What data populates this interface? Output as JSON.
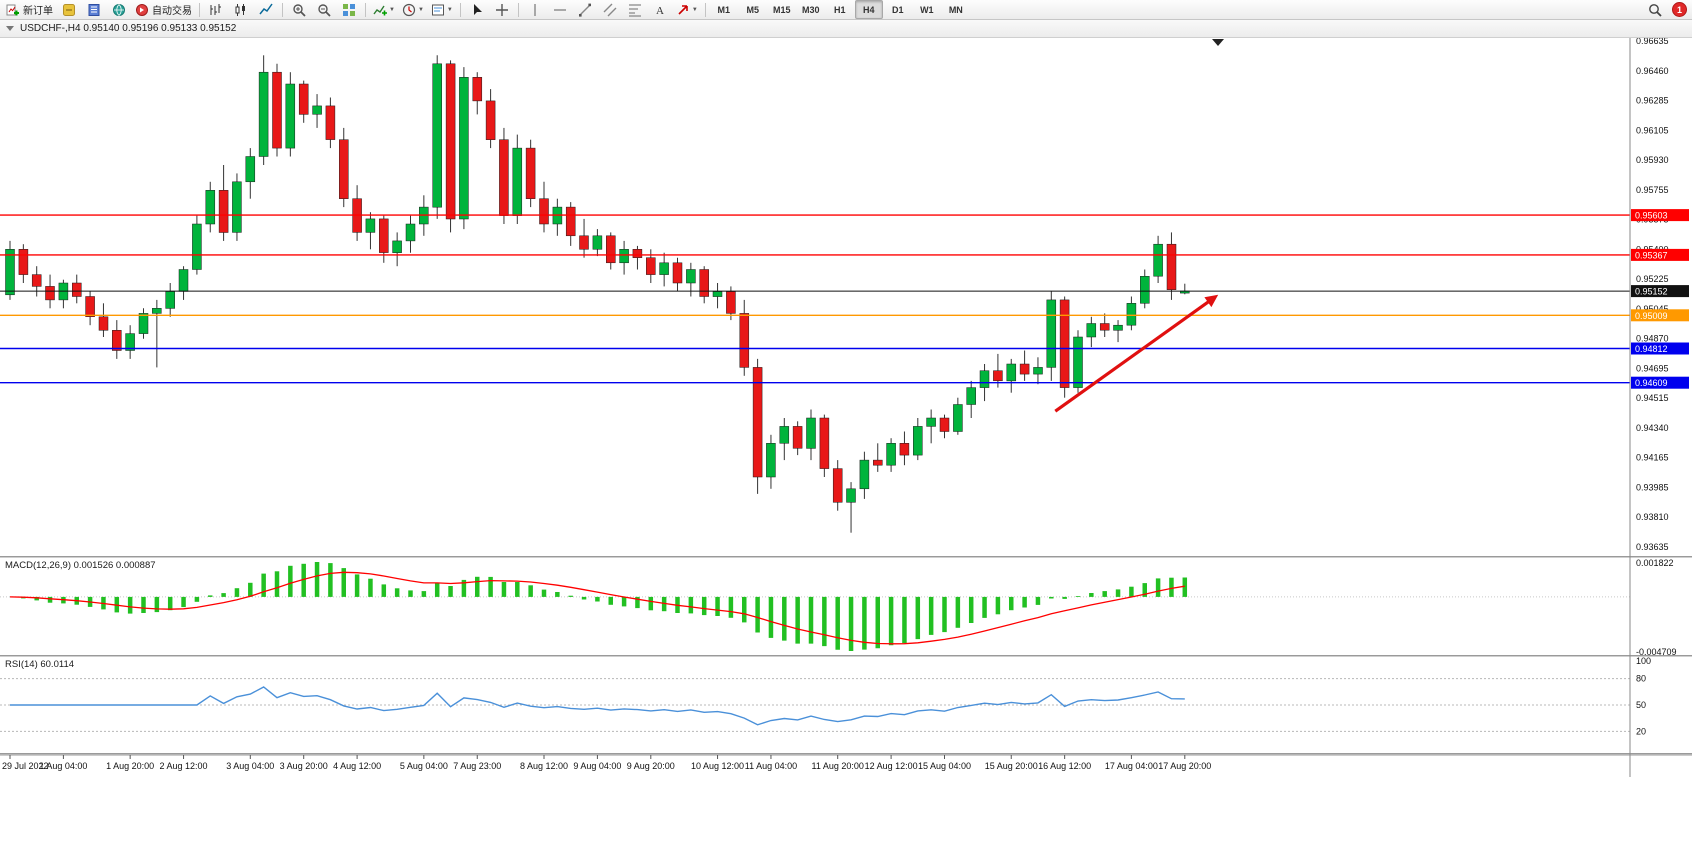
{
  "window": {
    "notification_count": "1"
  },
  "toolbar": {
    "new_order_label": "新订单",
    "autotrading_label": "自动交易",
    "active_timeframe": "H4",
    "buttons": [
      {
        "name": "new-order",
        "icon": "new-order",
        "label": "新订单"
      },
      {
        "name": "metaeditor",
        "icon": "metaeditor"
      },
      {
        "name": "market-depth",
        "icon": "market-depth"
      },
      {
        "name": "data-window",
        "icon": "data-window"
      },
      {
        "name": "autotrading",
        "icon": "autotrading",
        "label": "自动交易"
      },
      {
        "sep": true
      },
      {
        "name": "bar-chart",
        "icon": "bars"
      },
      {
        "name": "candlestick-chart",
        "icon": "candles"
      },
      {
        "name": "line-chart",
        "icon": "line"
      },
      {
        "sep": true
      },
      {
        "name": "zoom-in",
        "icon": "zoom-in"
      },
      {
        "name": "zoom-out",
        "icon": "zoom-out"
      },
      {
        "name": "tile-windows",
        "icon": "grid"
      },
      {
        "sep": true
      },
      {
        "name": "indicators",
        "icon": "indicator",
        "dropdown": true
      },
      {
        "name": "periods",
        "icon": "clock",
        "dropdown": true
      },
      {
        "name": "templates",
        "icon": "template",
        "dropdown": true
      },
      {
        "sep": true
      },
      {
        "name": "cursor",
        "icon": "cursor"
      },
      {
        "name": "crosshair",
        "icon": "crosshair"
      },
      {
        "sep": true
      },
      {
        "name": "vertical-line",
        "icon": "vline"
      },
      {
        "name": "horizontal-line",
        "icon": "hline"
      },
      {
        "name": "trendline",
        "icon": "trend"
      },
      {
        "name": "equidistant-channel",
        "icon": "channel"
      },
      {
        "name": "fibonacci-retracement",
        "icon": "fibo"
      },
      {
        "name": "text-label",
        "icon": "text"
      },
      {
        "name": "arrow-objects",
        "icon": "arrow-mark",
        "dropdown": true
      },
      {
        "sep": true
      },
      {
        "name": "timeframe-m1",
        "label": "M1"
      },
      {
        "name": "timeframe-m5",
        "label": "M5"
      },
      {
        "name": "timeframe-m15",
        "label": "M15"
      },
      {
        "name": "timeframe-m30",
        "label": "M30"
      },
      {
        "name": "timeframe-h1",
        "label": "H1"
      },
      {
        "name": "timeframe-h4",
        "label": "H4"
      },
      {
        "name": "timeframe-d1",
        "label": "D1"
      },
      {
        "name": "timeframe-w1",
        "label": "W1"
      },
      {
        "name": "timeframe-mn",
        "label": "MN"
      }
    ]
  },
  "chart": {
    "symbol_line": "USDCHF-,H4 0.95140 0.95196 0.95133 0.95152",
    "symbol": "USDCHF-",
    "timeframe": "H4"
  },
  "chart_data": [
    {
      "type": "candlestick",
      "title": "USDCHF-,H4",
      "open": "0.95140",
      "high": "0.95196",
      "low": "0.95133",
      "close": "0.95152",
      "ylim": [
        0.93635,
        0.96635
      ],
      "y_ticks": [
        "0.96635",
        "0.96460",
        "0.96285",
        "0.96105",
        "0.95930",
        "0.95755",
        "0.95575",
        "0.95400",
        "0.95225",
        "0.95045",
        "0.94870",
        "0.94695",
        "0.94515",
        "0.94340",
        "0.94165",
        "0.93985",
        "0.93810",
        "0.93635"
      ],
      "time_labels": [
        [
          "29 Jul 2022",
          0
        ],
        [
          "1 Aug 04:00",
          4
        ],
        [
          "1 Aug 20:00",
          9
        ],
        [
          "2 Aug 12:00",
          13
        ],
        [
          "3 Aug 04:00",
          18
        ],
        [
          "3 Aug 20:00",
          22
        ],
        [
          "4 Aug 12:00",
          26
        ],
        [
          "5 Aug 04:00",
          31
        ],
        [
          "7 Aug 23:00",
          35
        ],
        [
          "8 Aug 12:00",
          40
        ],
        [
          "9 Aug 04:00",
          44
        ],
        [
          "9 Aug 20:00",
          48
        ],
        [
          "10 Aug 12:00",
          53
        ],
        [
          "11 Aug 04:00",
          57
        ],
        [
          "11 Aug 20:00",
          62
        ],
        [
          "12 Aug 12:00",
          66
        ],
        [
          "15 Aug 04:00",
          70
        ],
        [
          "15 Aug 20:00",
          75
        ],
        [
          "16 Aug 12:00",
          79
        ],
        [
          "17 Aug 04:00",
          84
        ],
        [
          "17 Aug 20:00",
          88
        ]
      ],
      "price_lines": [
        {
          "price": 0.95603,
          "label": "0.95603",
          "color": "#ff0000",
          "type": "resistance"
        },
        {
          "price": 0.95367,
          "label": "0.95367",
          "color": "#ff0000",
          "type": "resistance"
        },
        {
          "price": 0.95152,
          "label": "0.95152",
          "color": "#111111",
          "type": "current-bid"
        },
        {
          "price": 0.95009,
          "label": "0.95009",
          "color": "#ff9900",
          "type": "support"
        },
        {
          "price": 0.94812,
          "label": "0.94812",
          "color": "#0000ee",
          "type": "support"
        },
        {
          "price": 0.94609,
          "label": "0.94609",
          "color": "#0000ee",
          "type": "support"
        }
      ],
      "trend_arrow": {
        "from_index": 78.3,
        "from_price": 0.9444,
        "to_index": 90.5,
        "to_price": 0.9513,
        "color": "#e01010"
      },
      "colors": {
        "bull": "#00b43c",
        "bear": "#e81818",
        "wick": "#333333",
        "background": "#ffffff"
      },
      "candles": [
        [
          0.9513,
          0.9545,
          0.951,
          0.954
        ],
        [
          0.954,
          0.9543,
          0.952,
          0.9525
        ],
        [
          0.9525,
          0.953,
          0.9512,
          0.9518
        ],
        [
          0.9518,
          0.9525,
          0.9505,
          0.951
        ],
        [
          0.951,
          0.9522,
          0.9505,
          0.952
        ],
        [
          0.952,
          0.9525,
          0.9508,
          0.9512
        ],
        [
          0.9512,
          0.9515,
          0.9495,
          0.95
        ],
        [
          0.95,
          0.9508,
          0.9488,
          0.9492
        ],
        [
          0.9492,
          0.9498,
          0.9475,
          0.948
        ],
        [
          0.948,
          0.9495,
          0.9475,
          0.949
        ],
        [
          0.949,
          0.9505,
          0.9487,
          0.9502
        ],
        [
          0.9502,
          0.951,
          0.947,
          0.9505
        ],
        [
          0.9505,
          0.952,
          0.95,
          0.9515
        ],
        [
          0.9515,
          0.953,
          0.951,
          0.9528
        ],
        [
          0.9528,
          0.956,
          0.9525,
          0.9555
        ],
        [
          0.9555,
          0.958,
          0.955,
          0.9575
        ],
        [
          0.9575,
          0.959,
          0.9545,
          0.955
        ],
        [
          0.955,
          0.9585,
          0.9545,
          0.958
        ],
        [
          0.958,
          0.96,
          0.957,
          0.9595
        ],
        [
          0.9595,
          0.9655,
          0.959,
          0.9645
        ],
        [
          0.9645,
          0.965,
          0.9595,
          0.96
        ],
        [
          0.96,
          0.9645,
          0.9595,
          0.9638
        ],
        [
          0.9638,
          0.964,
          0.9615,
          0.962
        ],
        [
          0.962,
          0.9632,
          0.9612,
          0.9625
        ],
        [
          0.9625,
          0.963,
          0.96,
          0.9605
        ],
        [
          0.9605,
          0.9612,
          0.9565,
          0.957
        ],
        [
          0.957,
          0.9578,
          0.9545,
          0.955
        ],
        [
          0.955,
          0.9562,
          0.954,
          0.9558
        ],
        [
          0.9558,
          0.956,
          0.9532,
          0.9538
        ],
        [
          0.9538,
          0.955,
          0.953,
          0.9545
        ],
        [
          0.9545,
          0.956,
          0.9538,
          0.9555
        ],
        [
          0.9555,
          0.9572,
          0.9548,
          0.9565
        ],
        [
          0.9565,
          0.9655,
          0.9558,
          0.965
        ],
        [
          0.965,
          0.9652,
          0.955,
          0.9558
        ],
        [
          0.9558,
          0.9648,
          0.9552,
          0.9642
        ],
        [
          0.9642,
          0.9645,
          0.962,
          0.9628
        ],
        [
          0.9628,
          0.9635,
          0.96,
          0.9605
        ],
        [
          0.9605,
          0.9612,
          0.9555,
          0.956
        ],
        [
          0.956,
          0.9608,
          0.9555,
          0.96
        ],
        [
          0.96,
          0.9605,
          0.9565,
          0.957
        ],
        [
          0.957,
          0.958,
          0.955,
          0.9555
        ],
        [
          0.9555,
          0.957,
          0.9548,
          0.9565
        ],
        [
          0.9565,
          0.9568,
          0.9542,
          0.9548
        ],
        [
          0.9548,
          0.9558,
          0.9535,
          0.954
        ],
        [
          0.954,
          0.9552,
          0.9536,
          0.9548
        ],
        [
          0.9548,
          0.955,
          0.9528,
          0.9532
        ],
        [
          0.9532,
          0.9545,
          0.9525,
          0.954
        ],
        [
          0.954,
          0.9542,
          0.9528,
          0.9535
        ],
        [
          0.9535,
          0.954,
          0.952,
          0.9525
        ],
        [
          0.9525,
          0.9538,
          0.9518,
          0.9532
        ],
        [
          0.9532,
          0.9535,
          0.9515,
          0.952
        ],
        [
          0.952,
          0.9532,
          0.9512,
          0.9528
        ],
        [
          0.9528,
          0.953,
          0.9508,
          0.9512
        ],
        [
          0.9512,
          0.952,
          0.9505,
          0.9515
        ],
        [
          0.9515,
          0.9518,
          0.9498,
          0.9502
        ],
        [
          0.9502,
          0.951,
          0.9465,
          0.947
        ],
        [
          0.947,
          0.9475,
          0.9395,
          0.9405
        ],
        [
          0.9405,
          0.943,
          0.9398,
          0.9425
        ],
        [
          0.9425,
          0.944,
          0.9415,
          0.9435
        ],
        [
          0.9435,
          0.9438,
          0.9418,
          0.9422
        ],
        [
          0.9422,
          0.9445,
          0.9415,
          0.944
        ],
        [
          0.944,
          0.9442,
          0.9405,
          0.941
        ],
        [
          0.941,
          0.9415,
          0.9385,
          0.939
        ],
        [
          0.939,
          0.9402,
          0.9372,
          0.9398
        ],
        [
          0.9398,
          0.942,
          0.9392,
          0.9415
        ],
        [
          0.9415,
          0.9425,
          0.9408,
          0.9412
        ],
        [
          0.9412,
          0.9428,
          0.9408,
          0.9425
        ],
        [
          0.9425,
          0.9432,
          0.9412,
          0.9418
        ],
        [
          0.9418,
          0.944,
          0.9415,
          0.9435
        ],
        [
          0.9435,
          0.9445,
          0.9425,
          0.944
        ],
        [
          0.944,
          0.9442,
          0.9428,
          0.9432
        ],
        [
          0.9432,
          0.9452,
          0.943,
          0.9448
        ],
        [
          0.9448,
          0.9462,
          0.944,
          0.9458
        ],
        [
          0.9458,
          0.9472,
          0.945,
          0.9468
        ],
        [
          0.9468,
          0.9478,
          0.9458,
          0.9462
        ],
        [
          0.9462,
          0.9475,
          0.9455,
          0.9472
        ],
        [
          0.9472,
          0.948,
          0.9462,
          0.9466
        ],
        [
          0.9466,
          0.9476,
          0.946,
          0.947
        ],
        [
          0.947,
          0.9515,
          0.9462,
          0.951
        ],
        [
          0.951,
          0.9512,
          0.9452,
          0.9458
        ],
        [
          0.9458,
          0.9492,
          0.9455,
          0.9488
        ],
        [
          0.9488,
          0.95,
          0.9482,
          0.9496
        ],
        [
          0.9496,
          0.9502,
          0.9488,
          0.9492
        ],
        [
          0.9492,
          0.9498,
          0.9485,
          0.9495
        ],
        [
          0.9495,
          0.9512,
          0.9492,
          0.9508
        ],
        [
          0.9508,
          0.9528,
          0.9505,
          0.9524
        ],
        [
          0.9524,
          0.9548,
          0.952,
          0.9543
        ],
        [
          0.9543,
          0.955,
          0.951,
          0.9516
        ],
        [
          0.9514,
          0.95196,
          0.95133,
          0.95152
        ]
      ]
    },
    {
      "type": "macd",
      "label": "MACD(12,26,9) 0.001526 0.000887",
      "params": {
        "fast": 12,
        "slow": 26,
        "signal": 9
      },
      "macd_value": "0.001526",
      "signal_value": "0.000887",
      "y_axis_labels": [
        "0.001822",
        "-0.004709"
      ],
      "colors": {
        "histogram": "#22c022",
        "signal": "#ff0000"
      }
    },
    {
      "type": "rsi",
      "label": "RSI(14) 60.0114",
      "period": 14,
      "value": "60.0114",
      "levels": [
        80,
        50,
        20
      ],
      "y_axis_labels": [
        "100",
        "80",
        "50",
        "20"
      ],
      "color": "#4a90d9"
    }
  ]
}
